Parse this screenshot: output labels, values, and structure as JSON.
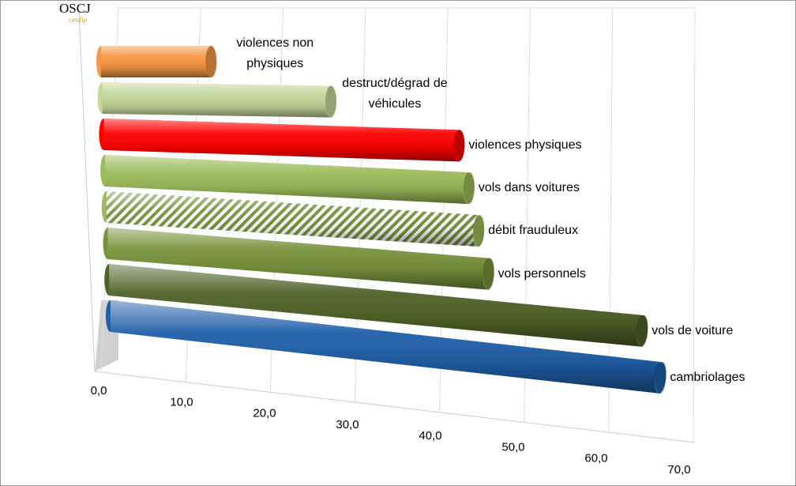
{
  "chart_data": {
    "type": "bar3d",
    "logo": "OSCJ",
    "logo_subtitle": "cesdip",
    "categories": [
      "violences non physiques",
      "destruct/dégrad de véhicules",
      "violences physiques",
      "vols dans voitures",
      "débit frauduleux",
      "vols personnels",
      "vols de voiture",
      "cambriolages"
    ],
    "values": [
      13,
      27,
      42,
      43,
      44,
      45,
      63,
      65
    ],
    "colors": [
      "#f79646",
      "#c4d79b",
      "#ff0000",
      "#9bbb59",
      "#9bbb59",
      "#77933c",
      "#4f6228",
      "#1f5fa8"
    ],
    "hatched": [
      false,
      false,
      false,
      false,
      true,
      false,
      false,
      false
    ],
    "xlim": [
      0,
      70
    ],
    "xticks": [
      {
        "value": 0,
        "label": "0,0"
      },
      {
        "value": 10,
        "label": "10,0"
      },
      {
        "value": 20,
        "label": "20,0"
      },
      {
        "value": 30,
        "label": "30,0"
      },
      {
        "value": 40,
        "label": "40,0"
      },
      {
        "value": 50,
        "label": "50,0"
      },
      {
        "value": 60,
        "label": "60,0"
      },
      {
        "value": 70,
        "label": "70,0"
      }
    ],
    "grid": true
  }
}
